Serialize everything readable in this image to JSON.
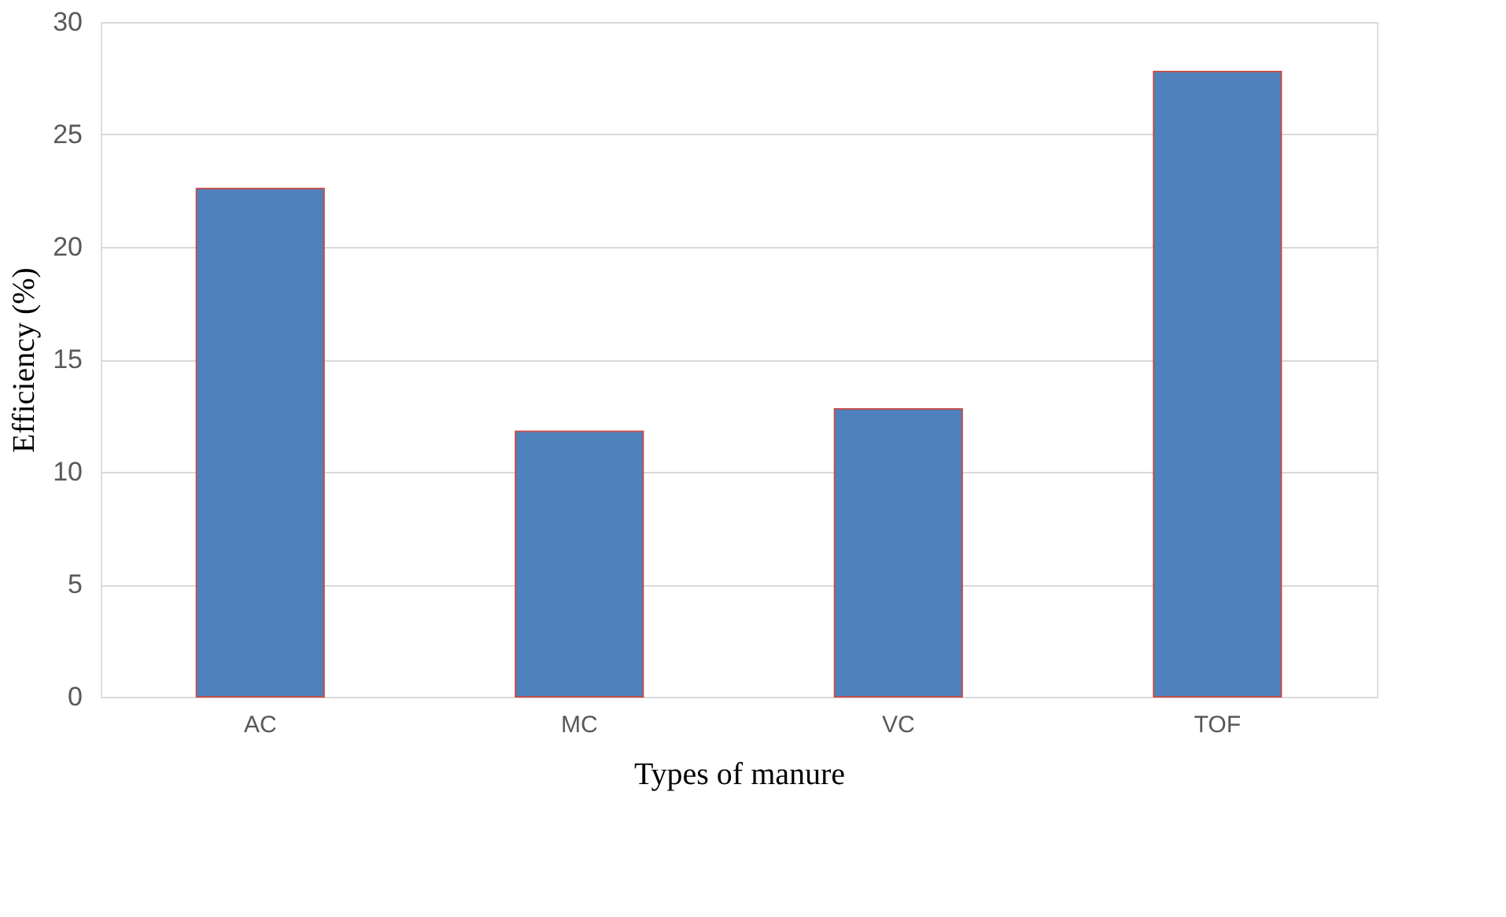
{
  "chart_data": {
    "type": "bar",
    "xlabel": "Types of manure",
    "ylabel": "Efficiency (%)",
    "categories": [
      "AC",
      "MC",
      "VC",
      "TOF"
    ],
    "values": [
      22.6,
      11.8,
      12.8,
      27.8
    ],
    "color": "#4f81bd",
    "ylim": [
      0,
      30
    ],
    "yticks": [
      0,
      5,
      10,
      15,
      20,
      25,
      30
    ],
    "grid": "y"
  }
}
